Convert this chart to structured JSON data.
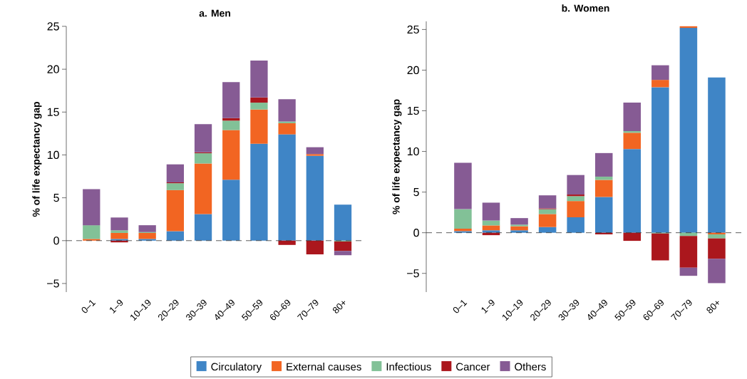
{
  "chart_data": [
    {
      "type": "bar",
      "stacked": true,
      "title": "a. Men",
      "ylabel": "% of life expectancy gap",
      "legend": "bottom",
      "categories": [
        "0–1",
        "1–9",
        "10–19",
        "20–29",
        "30–39",
        "40–49",
        "50–59",
        "60–69",
        "70–79",
        "80+"
      ],
      "series": [
        {
          "name": "Circulatory",
          "color": "#3f85c6",
          "values": [
            0,
            0.2,
            0.2,
            1.1,
            3.1,
            7.1,
            11.3,
            12.4,
            9.9,
            4.2
          ]
        },
        {
          "name": "External causes",
          "color": "#f26522",
          "values": [
            0.2,
            0.7,
            0.7,
            4.8,
            5.9,
            5.8,
            4.0,
            1.3,
            0.2,
            0
          ]
        },
        {
          "name": "Infectious",
          "color": "#82c197",
          "values": [
            1.6,
            0.3,
            0.1,
            0.8,
            1.2,
            1.1,
            0.8,
            0.2,
            0,
            -0.1
          ]
        },
        {
          "name": "Cancer",
          "color": "#ab171d",
          "values": [
            0,
            -0.2,
            0,
            0.1,
            0.1,
            0.3,
            0.6,
            -0.5,
            -1.6,
            -1.1
          ]
        },
        {
          "name": "Others",
          "color": "#865b94",
          "values": [
            4.2,
            1.5,
            0.8,
            2.1,
            3.3,
            4.2,
            4.3,
            2.6,
            0.8,
            -0.5
          ]
        }
      ],
      "ylim": [
        -6,
        25
      ],
      "yticks": [
        {
          "value": -5,
          "label": "−5"
        },
        0,
        5,
        10,
        15,
        20,
        25
      ],
      "ref_lines": [
        {
          "axis": "y",
          "value": 0,
          "line_style": "dashed"
        }
      ]
    },
    {
      "type": "bar",
      "stacked": true,
      "title": "b. Women",
      "ylabel": "% of life expectancy gap",
      "categories": [
        "0–1",
        "1–9",
        "10–19",
        "20–29",
        "30–39",
        "40–49",
        "50–59",
        "60–69",
        "70–79",
        "80+"
      ],
      "series": [
        {
          "color": "#3f85c6",
          "values": [
            0.2,
            0.3,
            0.3,
            0.7,
            1.9,
            4.4,
            10.3,
            17.9,
            25.2,
            19.1
          ]
        },
        {
          "color": "#f26522",
          "values": [
            0.3,
            0.6,
            0.5,
            1.6,
            2.0,
            2.1,
            2.0,
            0.9,
            0.2,
            -0.2
          ]
        },
        {
          "color": "#82c197",
          "values": [
            2.4,
            0.6,
            0.2,
            0.6,
            0.6,
            0.4,
            0.2,
            -0.1,
            -0.4,
            -0.5
          ]
        },
        {
          "color": "#ab171d",
          "values": [
            0,
            -0.3,
            0,
            0.1,
            0.2,
            -0.2,
            -1.0,
            -3.3,
            -3.9,
            -2.5
          ]
        },
        {
          "color": "#865b94",
          "values": [
            5.7,
            2.2,
            0.8,
            1.6,
            2.4,
            2.9,
            3.5,
            1.8,
            -1.0,
            -3.0
          ]
        }
      ],
      "ylim": [
        -7.3,
        26
      ],
      "yticks": [
        {
          "value": -5,
          "label": "−5"
        },
        0,
        5,
        10,
        15,
        20,
        25
      ],
      "ref_lines": [
        {
          "axis": "y",
          "value": 0,
          "line_style": "dashed"
        }
      ]
    }
  ]
}
